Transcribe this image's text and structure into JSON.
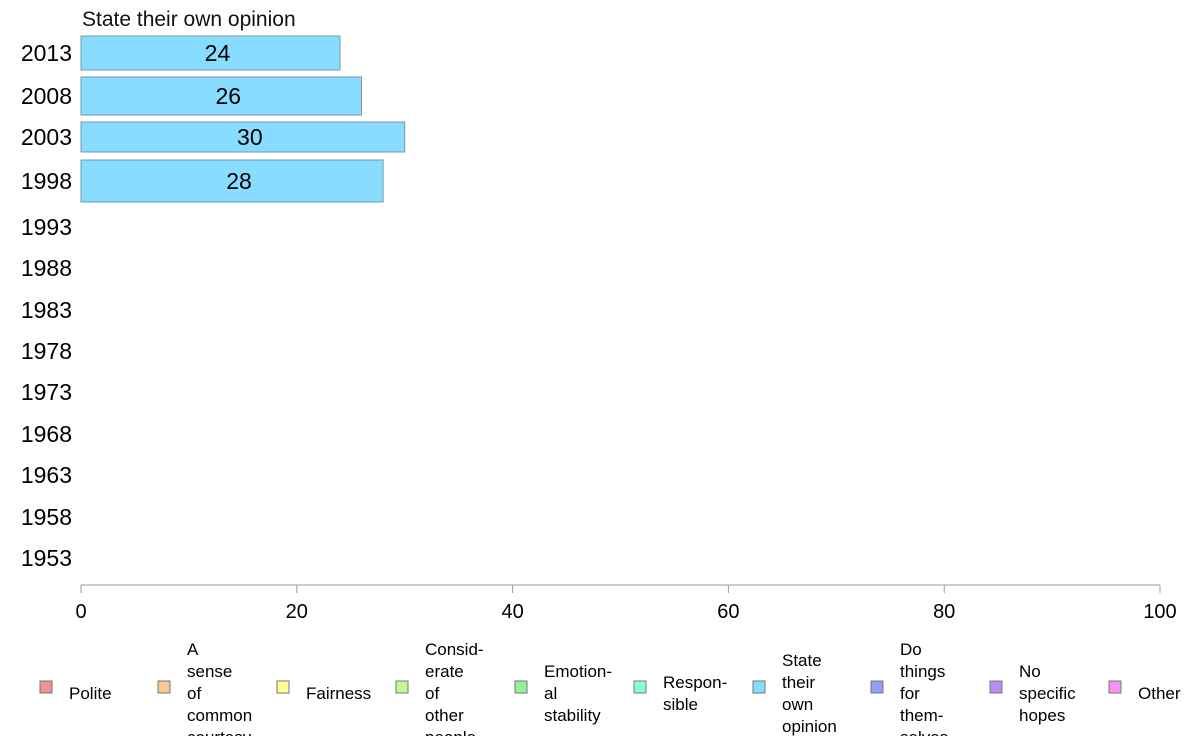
{
  "chart_data": {
    "type": "bar",
    "orientation": "horizontal",
    "title": "State their own opinion",
    "categories": [
      "2013",
      "2008",
      "2003",
      "1998",
      "1993",
      "1988",
      "1983",
      "1978",
      "1973",
      "1968",
      "1963",
      "1958",
      "1953"
    ],
    "series": [
      {
        "name": "State their own opinion",
        "values": [
          24,
          26,
          30,
          28,
          null,
          null,
          null,
          null,
          null,
          null,
          null,
          null,
          null
        ],
        "color": "#87dcff"
      }
    ],
    "xlim": [
      0,
      100
    ],
    "xticks": [
      "0",
      "20",
      "40",
      "60",
      "80",
      "100"
    ],
    "grid": false,
    "legend_position": "bottom",
    "legend": [
      {
        "label": "Polite",
        "color": "#f29191"
      },
      {
        "label": "A sense of common courtesy",
        "color": "#f8c991"
      },
      {
        "label": "Fairness",
        "color": "#ffff91"
      },
      {
        "label": "Consid- erate of other people",
        "color": "#c0f891"
      },
      {
        "label": "Emotion- al stability",
        "color": "#91f2a0"
      },
      {
        "label": "Respon- sible",
        "color": "#91f8dc"
      },
      {
        "label": "State their own opinion",
        "color": "#87dcff"
      },
      {
        "label": "Do things for them- selves",
        "color": "#8fa0f6"
      },
      {
        "label": "No specific hopes",
        "color": "#b890f2"
      },
      {
        "label": "Other",
        "color": "#f891f0"
      }
    ]
  }
}
